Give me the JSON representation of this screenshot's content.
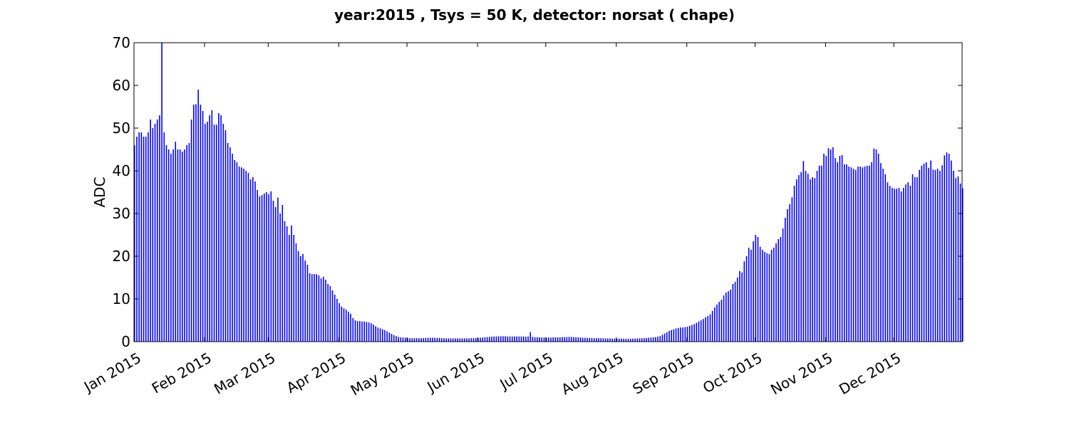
{
  "chart_data": {
    "type": "bar",
    "title": "year:2015 , Tsys = 50 K, detector: norsat ( chape)",
    "xlabel": "",
    "ylabel": "ADC",
    "x_range": [
      "2015-01-01",
      "2015-12-31"
    ],
    "ylim": [
      0,
      70
    ],
    "y_ticks": [
      0,
      10,
      20,
      30,
      40,
      50,
      60,
      70
    ],
    "x_tick_labels": [
      "Jan 2015",
      "Feb 2015",
      "Mar 2015",
      "Apr 2015",
      "May 2015",
      "Jun 2015",
      "Jul 2015",
      "Aug 2015",
      "Sep 2015",
      "Oct 2015",
      "Nov 2015",
      "Dec 2015"
    ],
    "x_tick_dates": [
      "2015-01-01",
      "2015-02-01",
      "2015-03-01",
      "2015-04-01",
      "2015-05-01",
      "2015-06-01",
      "2015-07-01",
      "2015-08-01",
      "2015-09-01",
      "2015-10-01",
      "2015-11-01",
      "2015-12-01"
    ],
    "grid": false,
    "bar_color": "#0000ff",
    "series": [
      {
        "values": [
          46,
          48,
          49,
          49,
          48,
          48,
          49,
          52,
          50,
          51,
          52,
          53,
          70,
          49,
          46,
          45,
          44,
          45,
          46.8,
          45,
          45,
          44.5,
          45,
          46,
          46.5,
          52,
          55.5,
          55.6,
          59,
          55.5,
          54,
          51,
          51.5,
          53,
          54.2,
          50.8,
          50.8,
          53.5,
          53,
          51,
          49.5,
          46.5,
          45.5,
          44,
          42.5,
          42,
          41,
          40.8,
          40.5,
          40,
          39.5,
          38,
          38.5,
          37.5,
          35.5,
          34,
          34.3,
          34.7,
          35,
          34.5,
          35.2,
          33,
          31.5,
          33.7,
          30,
          32,
          28.2,
          27,
          25,
          27.2,
          25,
          23,
          21.2,
          20,
          20.5,
          19,
          18,
          16,
          15.8,
          15.8,
          15.8,
          15.5,
          14.8,
          15.2,
          14.5,
          13.5,
          13,
          12,
          11,
          10,
          9,
          8.2,
          7.8,
          7.5,
          7,
          6.5,
          5.5,
          5,
          4.8,
          4.8,
          4.7,
          4.7,
          4.6,
          4.5,
          4.3,
          4,
          3.6,
          3.3,
          3.1,
          2.9,
          2.7,
          2.4,
          2.1,
          1.8,
          1.5,
          1.3,
          1.1,
          1,
          0.95,
          0.9,
          0.85,
          0.8,
          0.8,
          0.8,
          0.8,
          0.8,
          0.8,
          0.8,
          0.85,
          0.9,
          0.9,
          0.9,
          0.9,
          0.85,
          0.85,
          0.8,
          0.8,
          0.75,
          0.75,
          0.75,
          0.75,
          0.75,
          0.75,
          0.75,
          0.75,
          0.75,
          0.75,
          0.75,
          0.8,
          0.8,
          0.8,
          0.85,
          0.9,
          0.95,
          1,
          1.05,
          1.1,
          1.15,
          1.2,
          1.2,
          1.25,
          1.25,
          1.25,
          1.25,
          1.2,
          1.2,
          1.2,
          1.2,
          1.2,
          1.2,
          1.2,
          1.2,
          1.15,
          1.2,
          2.2,
          1.1,
          1,
          1,
          1,
          0.95,
          0.95,
          0.95,
          0.95,
          0.95,
          1,
          1,
          1,
          1,
          1.05,
          1.05,
          1.05,
          1.1,
          1.1,
          1.05,
          1,
          1,
          0.95,
          0.9,
          0.9,
          0.85,
          0.85,
          0.85,
          0.8,
          0.8,
          0.8,
          0.8,
          0.75,
          0.75,
          0.75,
          0.75,
          0.7,
          0.7,
          0.7,
          0.7,
          0.7,
          0.65,
          0.65,
          0.65,
          0.65,
          0.7,
          0.7,
          0.75,
          0.75,
          0.8,
          0.8,
          0.85,
          0.9,
          0.95,
          1,
          1.05,
          1.15,
          1.3,
          1.6,
          1.9,
          2.2,
          2.5,
          2.7,
          2.9,
          3.1,
          3.2,
          3.3,
          3.3,
          3.4,
          3.5,
          3.7,
          3.9,
          4.1,
          4.4,
          4.7,
          5,
          5.3,
          5.7,
          6,
          6.4,
          7.2,
          8,
          8.7,
          9.3,
          9.8,
          10.8,
          11.5,
          11.8,
          12.2,
          13.5,
          14,
          15,
          16.5,
          16.2,
          18.8,
          20,
          22,
          21.5,
          23.5,
          25,
          24.5,
          22.2,
          21.5,
          21,
          20.7,
          20.5,
          21.5,
          22,
          23,
          24,
          24.5,
          26.5,
          29,
          31,
          32.2,
          33.8,
          36.5,
          38,
          39,
          39.7,
          42.3,
          40,
          39.3,
          38,
          38.5,
          38.3,
          40,
          41.2,
          41.2,
          44,
          43.5,
          45.3,
          45,
          45.5,
          43,
          42,
          43.5,
          43.7,
          41.5,
          41.5,
          41,
          40.8,
          40.5,
          40.2,
          41,
          41,
          40.8,
          41,
          41.2,
          41.2,
          42,
          45.2,
          45,
          44,
          41.8,
          40.5,
          39.2,
          37.3,
          36.5,
          36,
          35.8,
          35.8,
          36,
          35.2,
          36,
          36.8,
          37.3,
          36.5,
          39.2,
          38.5,
          38.5,
          40.2,
          41.2,
          41.7,
          42,
          40.7,
          42.4,
          40.3,
          40.2,
          40.5,
          40,
          41.3,
          43.6,
          44.3,
          44,
          42.4,
          40,
          38.3,
          38.7,
          37,
          35.9
        ]
      }
    ]
  }
}
